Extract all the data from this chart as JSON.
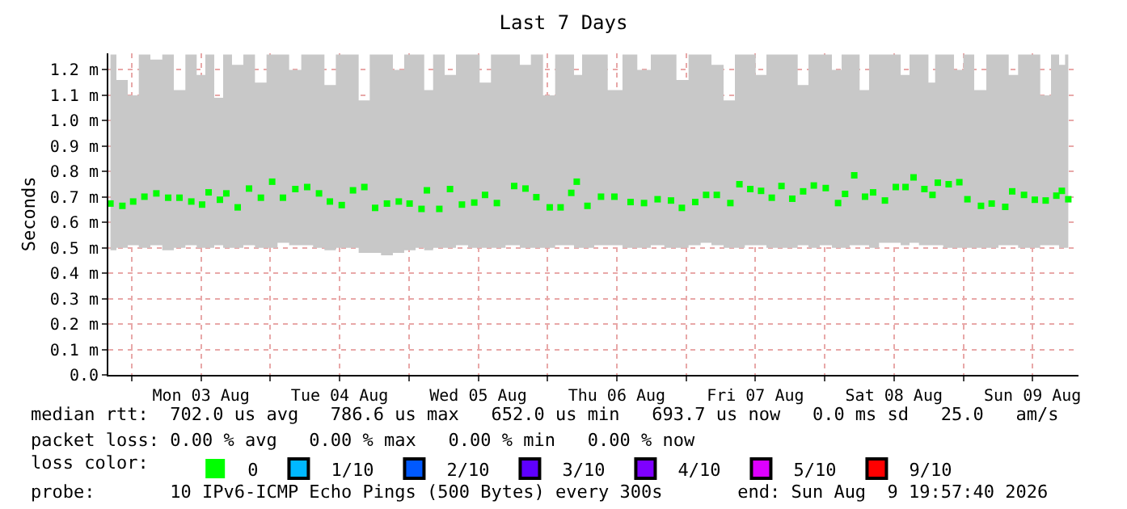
{
  "chart_data": {
    "type": "scatter",
    "title": "Last 7 Days",
    "ylabel": "Seconds",
    "legend_title": "loss color:",
    "xlim": [
      "2026-08-02T19:57",
      "2026-08-09T19:57"
    ],
    "xticks": [
      {
        "value": "2026-08-03T00:00",
        "label": null
      },
      {
        "value": "2026-08-03T12:00",
        "label": "Mon 03 Aug"
      },
      {
        "value": "2026-08-04T00:00",
        "label": null
      },
      {
        "value": "2026-08-04T12:00",
        "label": "Tue 04 Aug"
      },
      {
        "value": "2026-08-05T00:00",
        "label": null
      },
      {
        "value": "2026-08-05T12:00",
        "label": "Wed 05 Aug"
      },
      {
        "value": "2026-08-06T00:00",
        "label": null
      },
      {
        "value": "2026-08-06T12:00",
        "label": "Thu 06 Aug"
      },
      {
        "value": "2026-08-07T00:00",
        "label": null
      },
      {
        "value": "2026-08-07T12:00",
        "label": "Fri 07 Aug"
      },
      {
        "value": "2026-08-08T00:00",
        "label": null
      },
      {
        "value": "2026-08-08T12:00",
        "label": "Sat 08 Aug"
      },
      {
        "value": "2026-08-09T00:00",
        "label": null
      },
      {
        "value": "2026-08-09T12:00",
        "label": "Sun 09 Aug"
      }
    ],
    "ylim": [
      0,
      1.265
    ],
    "yticks": [
      {
        "value": 0,
        "label": "0.0"
      },
      {
        "value": 0.1,
        "label": "0.1 m"
      },
      {
        "value": 0.2,
        "label": "0.2 m"
      },
      {
        "value": 0.3,
        "label": "0.3 m"
      },
      {
        "value": 0.4,
        "label": "0.4 m"
      },
      {
        "value": 0.5,
        "label": "0.5 m"
      },
      {
        "value": 0.6,
        "label": "0.6 m"
      },
      {
        "value": 0.7,
        "label": "0.7 m"
      },
      {
        "value": 0.8,
        "label": "0.8 m"
      },
      {
        "value": 0.9,
        "label": "0.9 m"
      },
      {
        "value": 1.0,
        "label": "1.0 m"
      },
      {
        "value": 1.1,
        "label": "1.1 m"
      },
      {
        "value": 1.2,
        "label": "1.2 m"
      }
    ],
    "grid": true,
    "legend": "bottom",
    "marker": "square",
    "series": [
      {
        "name": "0",
        "color": "#00ff00",
        "x": [
          "2026-08-02T20:19",
          "2026-08-02T22:23",
          "2026-08-03T00:15",
          "2026-08-03T02:12",
          "2026-08-03T04:16",
          "2026-08-03T06:19",
          "2026-08-03T08:16",
          "2026-08-03T10:19",
          "2026-08-03T12:11",
          "2026-08-03T13:19",
          "2026-08-03T15:16",
          "2026-08-03T16:23",
          "2026-08-03T18:21",
          "2026-08-03T20:19",
          "2026-08-03T22:22",
          "2026-08-04T00:19",
          "2026-08-04T02:11",
          "2026-08-04T04:20",
          "2026-08-04T06:23",
          "2026-08-04T08:26",
          "2026-08-04T10:19",
          "2026-08-04T12:22",
          "2026-08-04T14:19",
          "2026-08-04T16:17",
          "2026-08-04T18:09",
          "2026-08-04T20:12",
          "2026-08-04T22:15",
          "2026-08-05T00:07",
          "2026-08-05T02:11",
          "2026-08-05T03:07",
          "2026-08-05T05:16",
          "2026-08-05T07:07",
          "2026-08-05T09:11",
          "2026-08-05T11:19",
          "2026-08-05T13:11",
          "2026-08-05T15:14",
          "2026-08-05T18:14",
          "2026-08-05T20:11",
          "2026-08-05T22:04",
          "2026-08-06T00:23",
          "2026-08-06T02:16",
          "2026-08-06T04:07",
          "2026-08-06T05:04",
          "2026-08-06T06:55",
          "2026-08-06T09:16",
          "2026-08-06T11:35",
          "2026-08-06T14:23",
          "2026-08-06T16:43",
          "2026-08-06T19:04",
          "2026-08-06T21:23",
          "2026-08-06T23:16",
          "2026-08-07T01:35",
          "2026-08-07T03:28",
          "2026-08-07T05:19",
          "2026-08-07T07:40",
          "2026-08-07T09:14",
          "2026-08-07T11:07",
          "2026-08-07T12:59",
          "2026-08-07T14:50",
          "2026-08-07T16:31",
          "2026-08-07T18:23",
          "2026-08-07T20:16",
          "2026-08-07T22:07",
          "2026-08-08T00:11",
          "2026-08-08T02:19",
          "2026-08-08T03:32",
          "2026-08-08T05:07",
          "2026-08-08T06:59",
          "2026-08-08T08:23",
          "2026-08-08T10:26",
          "2026-08-08T12:19",
          "2026-08-08T14:00",
          "2026-08-08T15:23",
          "2026-08-08T17:16",
          "2026-08-08T18:40",
          "2026-08-08T19:35",
          "2026-08-08T21:28",
          "2026-08-08T23:19",
          "2026-08-09T00:43",
          "2026-08-09T03:04",
          "2026-08-09T04:55",
          "2026-08-09T07:16",
          "2026-08-09T08:28",
          "2026-08-09T10:31",
          "2026-08-09T12:23",
          "2026-08-09T14:16",
          "2026-08-09T16:07",
          "2026-08-09T17:04",
          "2026-08-09T18:11"
        ],
        "values": [
          0.674,
          0.665,
          0.682,
          0.701,
          0.714,
          0.697,
          0.697,
          0.682,
          0.67,
          0.718,
          0.689,
          0.714,
          0.659,
          0.733,
          0.697,
          0.76,
          0.697,
          0.731,
          0.739,
          0.714,
          0.682,
          0.668,
          0.726,
          0.739,
          0.657,
          0.674,
          0.682,
          0.674,
          0.653,
          0.726,
          0.653,
          0.731,
          0.67,
          0.678,
          0.708,
          0.676,
          0.743,
          0.733,
          0.699,
          0.659,
          0.659,
          0.716,
          0.76,
          0.665,
          0.701,
          0.701,
          0.68,
          0.676,
          0.691,
          0.686,
          0.657,
          0.68,
          0.708,
          0.708,
          0.676,
          0.75,
          0.731,
          0.724,
          0.697,
          0.743,
          0.693,
          0.722,
          0.745,
          0.735,
          0.676,
          0.712,
          0.785,
          0.701,
          0.718,
          0.686,
          0.739,
          0.739,
          0.777,
          0.731,
          0.708,
          0.756,
          0.75,
          0.758,
          0.691,
          0.665,
          0.674,
          0.661,
          0.722,
          0.708,
          0.689,
          0.686,
          0.705,
          0.724,
          0.691
        ],
        "lower": [
          0.49,
          0.5,
          0.51,
          0.5,
          0.51,
          0.49,
          0.5,
          0.51,
          0.5,
          0.5,
          0.51,
          0.5,
          0.5,
          0.51,
          0.5,
          0.5,
          0.52,
          0.51,
          0.51,
          0.5,
          0.49,
          0.5,
          0.5,
          0.48,
          0.48,
          0.47,
          0.48,
          0.49,
          0.5,
          0.49,
          0.5,
          0.5,
          0.51,
          0.5,
          0.5,
          0.5,
          0.51,
          0.5,
          0.5,
          0.5,
          0.51,
          0.51,
          0.5,
          0.5,
          0.51,
          0.51,
          0.5,
          0.5,
          0.51,
          0.5,
          0.5,
          0.51,
          0.52,
          0.51,
          0.5,
          0.5,
          0.51,
          0.51,
          0.5,
          0.5,
          0.5,
          0.51,
          0.5,
          0.51,
          0.5,
          0.5,
          0.51,
          0.51,
          0.5,
          0.52,
          0.52,
          0.51,
          0.52,
          0.51,
          0.51,
          0.51,
          0.5,
          0.5,
          0.5,
          0.5,
          0.5,
          0.51,
          0.51,
          0.5,
          0.5,
          0.51,
          0.51,
          0.5,
          0.5
        ],
        "upper": [
          1.26,
          1.16,
          1.1,
          1.26,
          1.24,
          1.26,
          1.12,
          1.26,
          1.18,
          1.26,
          1.09,
          1.26,
          1.22,
          1.26,
          1.15,
          1.26,
          1.26,
          1.2,
          1.26,
          1.26,
          1.14,
          1.26,
          1.26,
          1.08,
          1.26,
          1.26,
          1.2,
          1.26,
          1.26,
          1.12,
          1.26,
          1.18,
          1.26,
          1.26,
          1.15,
          1.26,
          1.26,
          1.22,
          1.26,
          1.1,
          1.26,
          1.26,
          1.18,
          1.26,
          1.26,
          1.12,
          1.26,
          1.2,
          1.26,
          1.26,
          1.16,
          1.26,
          1.26,
          1.22,
          1.08,
          1.26,
          1.26,
          1.18,
          1.26,
          1.26,
          1.26,
          1.14,
          1.26,
          1.26,
          1.2,
          1.26,
          1.26,
          1.12,
          1.26,
          1.26,
          1.26,
          1.18,
          1.26,
          1.26,
          1.15,
          1.26,
          1.26,
          1.2,
          1.26,
          1.12,
          1.26,
          1.26,
          1.18,
          1.26,
          1.26,
          1.1,
          1.26,
          1.22,
          1.26
        ]
      },
      {
        "name": "1/10",
        "color": "#00b8ff"
      },
      {
        "name": "2/10",
        "color": "#0059ff"
      },
      {
        "name": "3/10",
        "color": "#5e00ff"
      },
      {
        "name": "4/10",
        "color": "#7e00ff"
      },
      {
        "name": "5/10",
        "color": "#dd00ff"
      },
      {
        "name": "9/10",
        "color": "#ff0000"
      }
    ],
    "annotations": [
      "median rtt:  702.0 us avg   786.6 us max   652.0 us min   693.7 us now   0.0 ms sd   25.0   am/s",
      "packet loss: 0.00 % avg   0.00 % max   0.00 % min   0.00 % now",
      "probe:       10 IPv6-ICMP Echo Pings (500 Bytes) every 300s       end: Sun Aug  9 19:57:40 2026"
    ]
  }
}
